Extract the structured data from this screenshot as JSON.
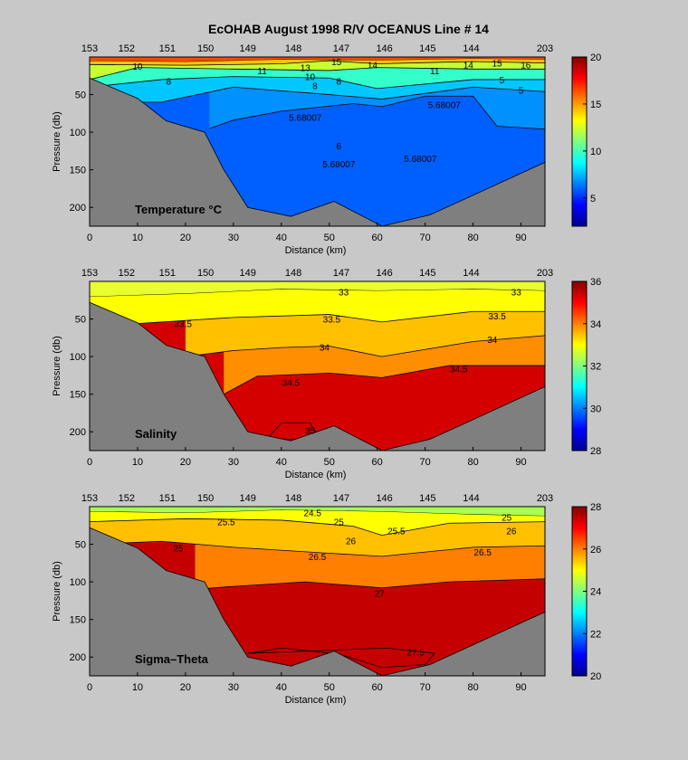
{
  "figure": {
    "title": "EcOHAB   August 1998   R/V OCEANUS   Line # 14"
  },
  "chart_data": [
    {
      "type": "heatmap",
      "label": "Temperature °C",
      "xlabel": "Distance (km)",
      "ylabel": "Pressure (db)",
      "xlim": [
        0,
        95
      ],
      "ylim": [
        225,
        0
      ],
      "xticks": [
        0,
        10,
        20,
        30,
        40,
        50,
        60,
        70,
        80,
        90
      ],
      "yticks": [
        50,
        100,
        150,
        200
      ],
      "stations": [
        {
          "name": "153",
          "x": 0
        },
        {
          "name": "152",
          "x": 7.7
        },
        {
          "name": "151",
          "x": 16.2
        },
        {
          "name": "150",
          "x": 24.2
        },
        {
          "name": "149",
          "x": 33
        },
        {
          "name": "148",
          "x": 42.5
        },
        {
          "name": "147",
          "x": 52.5
        },
        {
          "name": "146",
          "x": 61.5
        },
        {
          "name": "145",
          "x": 70.5
        },
        {
          "name": "144",
          "x": 79.6
        },
        {
          "name": "203",
          "x": 95
        }
      ],
      "colorbar": {
        "min": 2,
        "max": 20,
        "ticks": [
          5,
          10,
          15,
          20
        ]
      },
      "contour_labels": [
        {
          "text": "10",
          "x": 10,
          "y": 12
        },
        {
          "text": "8",
          "x": 16.5,
          "y": 32
        },
        {
          "text": "11",
          "x": 36,
          "y": 18
        },
        {
          "text": "13",
          "x": 45,
          "y": 14
        },
        {
          "text": "15",
          "x": 51.5,
          "y": 6
        },
        {
          "text": "14",
          "x": 59,
          "y": 10
        },
        {
          "text": "11",
          "x": 72,
          "y": 18
        },
        {
          "text": "14",
          "x": 79,
          "y": 10
        },
        {
          "text": "15",
          "x": 85,
          "y": 8
        },
        {
          "text": "16",
          "x": 91,
          "y": 10
        },
        {
          "text": "10",
          "x": 46,
          "y": 26
        },
        {
          "text": "8",
          "x": 52,
          "y": 32
        },
        {
          "text": "8",
          "x": 47,
          "y": 38
        },
        {
          "text": "5",
          "x": 86,
          "y": 30
        },
        {
          "text": "5",
          "x": 90,
          "y": 44
        },
        {
          "text": "5.68007",
          "x": 45,
          "y": 80
        },
        {
          "text": "5.68007",
          "x": 74,
          "y": 63
        },
        {
          "text": "6",
          "x": 52,
          "y": 118
        },
        {
          "text": "5.68007",
          "x": 52,
          "y": 142
        },
        {
          "text": "5.68007",
          "x": 69,
          "y": 135
        }
      ]
    },
    {
      "type": "heatmap",
      "label": "Salinity",
      "xlabel": "Distance (km)",
      "ylabel": "Pressure (db)",
      "xlim": [
        0,
        95
      ],
      "ylim": [
        225,
        0
      ],
      "xticks": [
        0,
        10,
        20,
        30,
        40,
        50,
        60,
        70,
        80,
        90
      ],
      "yticks": [
        50,
        100,
        150,
        200
      ],
      "stations": [
        {
          "name": "153",
          "x": 0
        },
        {
          "name": "152",
          "x": 7.7
        },
        {
          "name": "151",
          "x": 16.2
        },
        {
          "name": "150",
          "x": 24.2
        },
        {
          "name": "149",
          "x": 33
        },
        {
          "name": "148",
          "x": 42.5
        },
        {
          "name": "147",
          "x": 52.5
        },
        {
          "name": "146",
          "x": 61.5
        },
        {
          "name": "145",
          "x": 70.5
        },
        {
          "name": "144",
          "x": 79.6
        },
        {
          "name": "203",
          "x": 95
        }
      ],
      "colorbar": {
        "min": 28,
        "max": 36,
        "ticks": [
          28,
          30,
          32,
          34,
          36
        ]
      },
      "contour_labels": [
        {
          "text": "33",
          "x": 53,
          "y": 14
        },
        {
          "text": "33",
          "x": 89,
          "y": 14
        },
        {
          "text": "33.5",
          "x": 19.5,
          "y": 56
        },
        {
          "text": "33.5",
          "x": 50.5,
          "y": 50
        },
        {
          "text": "33.5",
          "x": 85,
          "y": 46
        },
        {
          "text": "34",
          "x": 49,
          "y": 87
        },
        {
          "text": "34",
          "x": 84,
          "y": 77
        },
        {
          "text": "34.5",
          "x": 42,
          "y": 134
        },
        {
          "text": "34.5",
          "x": 77,
          "y": 116
        },
        {
          "text": "35",
          "x": 46,
          "y": 198
        }
      ]
    },
    {
      "type": "heatmap",
      "label": "Sigma–Theta",
      "xlabel": "Distance (km)",
      "ylabel": "Pressure (db)",
      "xlim": [
        0,
        95
      ],
      "ylim": [
        225,
        0
      ],
      "xticks": [
        0,
        10,
        20,
        30,
        40,
        50,
        60,
        70,
        80,
        90
      ],
      "yticks": [
        50,
        100,
        150,
        200
      ],
      "stations": [
        {
          "name": "153",
          "x": 0
        },
        {
          "name": "152",
          "x": 7.7
        },
        {
          "name": "151",
          "x": 16.2
        },
        {
          "name": "150",
          "x": 24.2
        },
        {
          "name": "149",
          "x": 33
        },
        {
          "name": "148",
          "x": 42.5
        },
        {
          "name": "147",
          "x": 52.5
        },
        {
          "name": "146",
          "x": 61.5
        },
        {
          "name": "145",
          "x": 70.5
        },
        {
          "name": "144",
          "x": 79.6
        },
        {
          "name": "203",
          "x": 95
        }
      ],
      "colorbar": {
        "min": 20,
        "max": 28,
        "ticks": [
          20,
          22,
          24,
          26,
          28
        ]
      },
      "contour_labels": [
        {
          "text": "24.5",
          "x": 46.5,
          "y": 8
        },
        {
          "text": "25.5",
          "x": 28.5,
          "y": 20
        },
        {
          "text": "25",
          "x": 52,
          "y": 20
        },
        {
          "text": "25.5",
          "x": 64,
          "y": 32
        },
        {
          "text": "25",
          "x": 87,
          "y": 14
        },
        {
          "text": "26",
          "x": 88,
          "y": 32
        },
        {
          "text": "25",
          "x": 18.5,
          "y": 55
        },
        {
          "text": "26",
          "x": 54.5,
          "y": 45
        },
        {
          "text": "26.5",
          "x": 47.5,
          "y": 66
        },
        {
          "text": "26.5",
          "x": 82,
          "y": 60
        },
        {
          "text": "27",
          "x": 60.5,
          "y": 115
        },
        {
          "text": "27.5",
          "x": 68,
          "y": 193
        }
      ]
    }
  ]
}
